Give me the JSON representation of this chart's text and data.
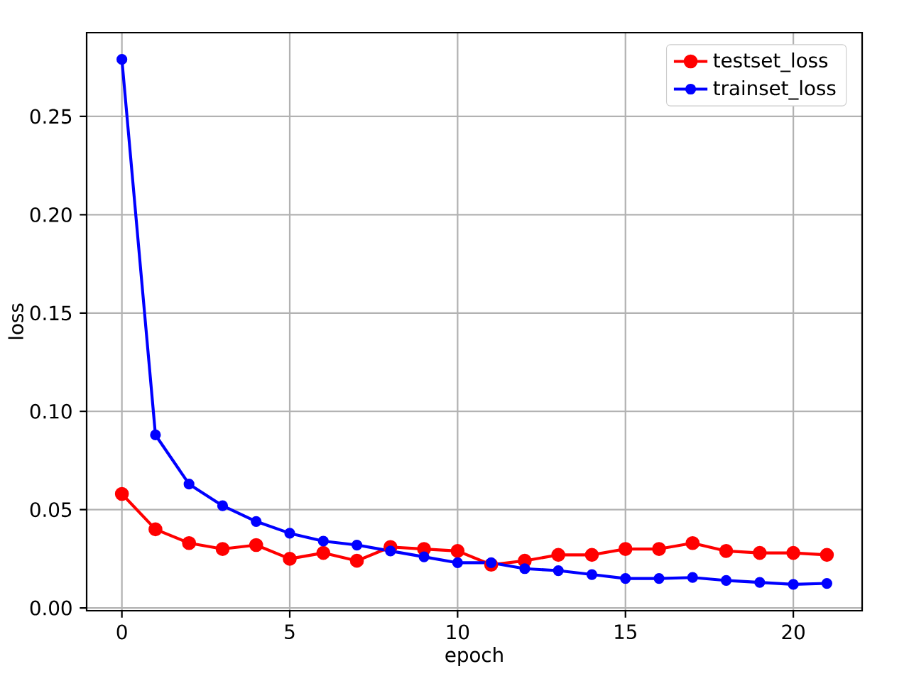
{
  "chart_data": {
    "type": "line",
    "xlabel": "epoch",
    "ylabel": "loss",
    "x": [
      0,
      1,
      2,
      3,
      4,
      5,
      6,
      7,
      8,
      9,
      10,
      11,
      12,
      13,
      14,
      15,
      16,
      17,
      18,
      19,
      20,
      21
    ],
    "series": [
      {
        "name": "testset_loss",
        "color": "#ff0000",
        "values": [
          0.058,
          0.04,
          0.033,
          0.03,
          0.032,
          0.025,
          0.028,
          0.024,
          0.031,
          0.03,
          0.029,
          0.022,
          0.024,
          0.027,
          0.027,
          0.03,
          0.03,
          0.033,
          0.029,
          0.028,
          0.028,
          0.027
        ]
      },
      {
        "name": "trainset_loss",
        "color": "#0000ff",
        "values": [
          0.279,
          0.088,
          0.063,
          0.052,
          0.044,
          0.038,
          0.034,
          0.032,
          0.029,
          0.026,
          0.023,
          0.023,
          0.02,
          0.019,
          0.017,
          0.015,
          0.015,
          0.0155,
          0.014,
          0.013,
          0.012,
          0.0125
        ]
      }
    ],
    "xlim": [
      -1.05,
      22.05
    ],
    "ylim": [
      -0.0014,
      0.2926
    ],
    "xticks": [
      0,
      5,
      10,
      15,
      20
    ],
    "yticks": [
      {
        "value": 0,
        "label": "0.00"
      },
      {
        "value": 0.05,
        "label": "0.05"
      },
      {
        "value": 0.1,
        "label": "0.10"
      },
      {
        "value": 0.15,
        "label": "0.15"
      },
      {
        "value": 0.2,
        "label": "0.20"
      },
      {
        "value": 0.25,
        "label": "0.25"
      }
    ],
    "grid": true,
    "legend": "top right",
    "marker": "circle",
    "line_style": "solid"
  }
}
